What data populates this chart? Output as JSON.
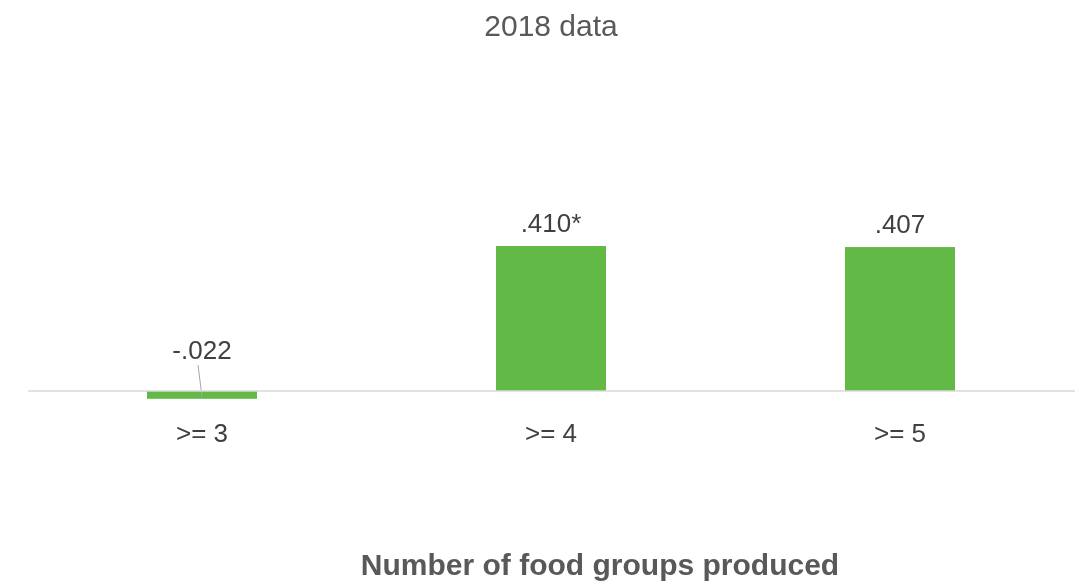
{
  "chart_data": {
    "type": "bar",
    "title": "2018 data",
    "xlabel": "Number of food groups produced",
    "categories": [
      ">= 3",
      ">= 4",
      ">= 5"
    ],
    "values": [
      -0.022,
      0.41,
      0.407
    ],
    "value_labels": [
      "-.022",
      ".410*",
      ".407"
    ],
    "color": "#62b946"
  }
}
